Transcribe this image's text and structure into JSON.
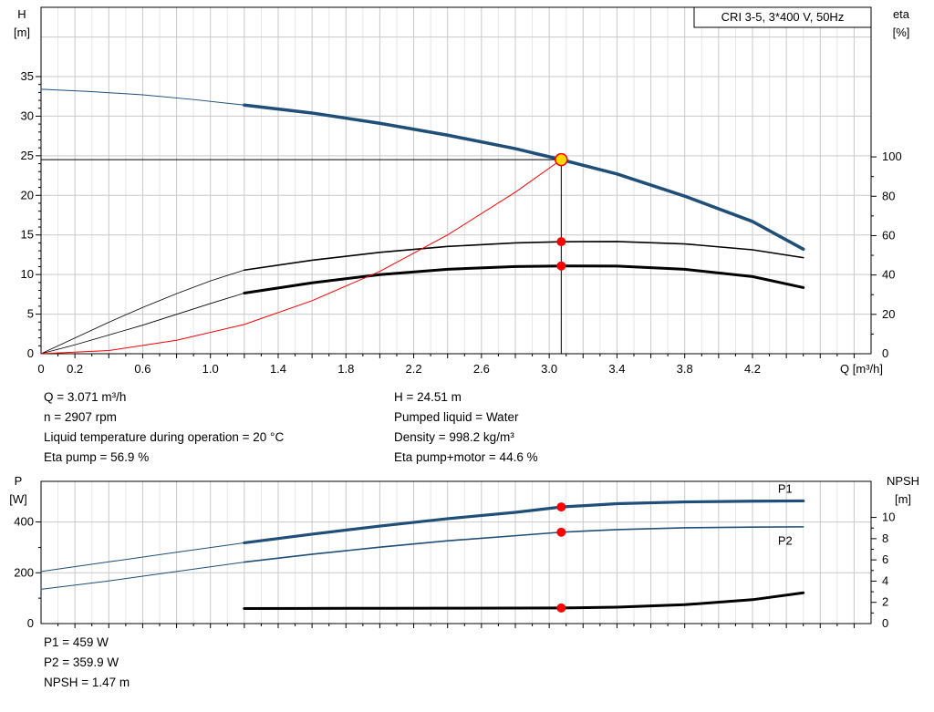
{
  "title_box": "CRI 3-5, 3*400 V, 50Hz",
  "info": {
    "left": [
      "Q = 3.071 m³/h",
      "n = 2907 rpm",
      "Liquid temperature during operation = 20 °C",
      "Eta pump = 56.9 %"
    ],
    "right": [
      "H = 24.51 m",
      "Pumped liquid = Water",
      "Density = 998.2 kg/m³",
      "Eta pump+motor = 44.6 %"
    ]
  },
  "bottom_info": [
    "P1 = 459 W",
    "P2 = 359.9 W",
    "NPSH = 1.47 m"
  ],
  "colors": {
    "curve_blue": "#1f4e79",
    "curve_black": "#000000",
    "marker_red": "#ff0000",
    "duty_yellow": "#ffd800",
    "grid_major": "#c9c9c9",
    "grid_minor": "#e6e6e6"
  },
  "chart_data": [
    {
      "type": "line",
      "title": "CRI 3-5, 3*400 V, 50Hz",
      "x_axis": {
        "label": "Q [m³/h]",
        "min": 0,
        "max": 4.9,
        "grid_step": 0.2,
        "minor_step": 0.1,
        "ticks": [
          [
            0,
            "0"
          ],
          [
            0.2,
            "0.2"
          ],
          [
            0.6,
            "0.6"
          ],
          [
            1,
            "1.0"
          ],
          [
            1.4,
            "1.4"
          ],
          [
            1.8,
            "1.8"
          ],
          [
            2.2,
            "2.2"
          ],
          [
            2.6,
            "2.6"
          ],
          [
            3,
            "3.0"
          ],
          [
            3.4,
            "3.4"
          ],
          [
            3.8,
            "3.8"
          ],
          [
            4.2,
            "4.2"
          ]
        ]
      },
      "y_left": {
        "label_lines": [
          "H",
          "[m]"
        ],
        "min": 0,
        "max": 43.75,
        "grid_step": 5,
        "minor_step": 1,
        "ticks": [
          [
            0,
            "0"
          ],
          [
            5,
            "5"
          ],
          [
            10,
            "10"
          ],
          [
            15,
            "15"
          ],
          [
            20,
            "20"
          ],
          [
            25,
            "25"
          ],
          [
            30,
            "30"
          ],
          [
            35,
            "35"
          ]
        ]
      },
      "y_right": {
        "label_lines": [
          "eta",
          "[%]"
        ],
        "min": 0,
        "max": 176,
        "minor_step": 10,
        "ticks": [
          [
            0,
            "0"
          ],
          [
            20,
            "20"
          ],
          [
            40,
            "40"
          ],
          [
            60,
            "60"
          ],
          [
            80,
            "80"
          ],
          [
            100,
            "100"
          ]
        ]
      },
      "series": [
        {
          "name": "hq-curve-thin",
          "axis": "left",
          "color": "#1f4e79",
          "width": 1,
          "points": [
            [
              0,
              33.4
            ],
            [
              0.3,
              33.1
            ],
            [
              0.6,
              32.7
            ],
            [
              0.9,
              32.1
            ],
            [
              1.2,
              31.4
            ]
          ]
        },
        {
          "name": "hq-curve",
          "axis": "left",
          "color": "#1f4e79",
          "width": 3.5,
          "points": [
            [
              1.2,
              31.4
            ],
            [
              1.6,
              30.4
            ],
            [
              2,
              29.1
            ],
            [
              2.4,
              27.6
            ],
            [
              2.8,
              25.9
            ],
            [
              3.071,
              24.51
            ],
            [
              3.4,
              22.7
            ],
            [
              3.8,
              19.9
            ],
            [
              4.2,
              16.7
            ],
            [
              4.5,
              13.2
            ]
          ]
        },
        {
          "name": "eta-pump-thin",
          "axis": "right",
          "color": "#000000",
          "width": 0.8,
          "points": [
            [
              0,
              0
            ],
            [
              0.2,
              8
            ],
            [
              0.4,
              16
            ],
            [
              0.6,
              23.5
            ],
            [
              0.8,
              30.5
            ],
            [
              1,
              37
            ],
            [
              1.2,
              42.5
            ]
          ]
        },
        {
          "name": "eta-pump-curve",
          "axis": "right",
          "color": "#000000",
          "width": 1.6,
          "points": [
            [
              1.2,
              42.5
            ],
            [
              1.6,
              47.5
            ],
            [
              2,
              51.5
            ],
            [
              2.4,
              54.5
            ],
            [
              2.8,
              56.3
            ],
            [
              3.071,
              56.9
            ],
            [
              3.4,
              57
            ],
            [
              3.8,
              55.8
            ],
            [
              4.2,
              52.8
            ],
            [
              4.5,
              48.8
            ]
          ]
        },
        {
          "name": "eta-pump-motor-thin",
          "axis": "right",
          "color": "#000000",
          "width": 0.8,
          "points": [
            [
              0,
              0
            ],
            [
              0.2,
              4.5
            ],
            [
              0.4,
              9.5
            ],
            [
              0.6,
              14.5
            ],
            [
              0.8,
              20
            ],
            [
              1,
              25.5
            ],
            [
              1.2,
              30.8
            ]
          ]
        },
        {
          "name": "eta-pump-motor-curve",
          "axis": "right",
          "color": "#000000",
          "width": 3,
          "points": [
            [
              1.2,
              30.8
            ],
            [
              1.6,
              36
            ],
            [
              2,
              40.2
            ],
            [
              2.4,
              42.9
            ],
            [
              2.8,
              44.3
            ],
            [
              3.071,
              44.6
            ],
            [
              3.4,
              44.5
            ],
            [
              3.8,
              42.9
            ],
            [
              4.2,
              39.2
            ],
            [
              4.5,
              33.6
            ]
          ]
        },
        {
          "name": "system-curve",
          "axis": "left",
          "color": "#ff0000",
          "width": 1,
          "points": [
            [
              0,
              0
            ],
            [
              0.4,
              0.4
            ],
            [
              0.8,
              1.7
            ],
            [
              1.2,
              3.7
            ],
            [
              1.6,
              6.7
            ],
            [
              2,
              10.4
            ],
            [
              2.4,
              15
            ],
            [
              2.8,
              20.4
            ],
            [
              3.071,
              24.51
            ]
          ]
        }
      ],
      "guides": [
        {
          "type": "vline",
          "axis": "left",
          "q": 3.071,
          "v_from": 0,
          "v_to": 24.51
        },
        {
          "type": "hline",
          "axis": "left",
          "v": 24.51,
          "q_from": 0,
          "q_to": 3.071
        }
      ],
      "markers": [
        {
          "name": "duty-point-marker",
          "q": 3.071,
          "v": 24.51,
          "axis": "left",
          "r": 6.5,
          "fill": "#ffd800",
          "stroke": "#ff0000",
          "stroke_width": 1.6
        },
        {
          "name": "eta-pump-marker",
          "q": 3.071,
          "v": 56.9,
          "axis": "right",
          "r": 5,
          "fill": "#ff0000"
        },
        {
          "name": "eta-pump-motor-marker",
          "q": 3.071,
          "v": 44.6,
          "axis": "right",
          "r": 5,
          "fill": "#ff0000"
        }
      ],
      "annotations": []
    },
    {
      "type": "line",
      "x_axis": {
        "min": 0,
        "max": 4.9,
        "grid_step": 0.2,
        "minor_step": 0.1,
        "ticks": []
      },
      "y_left": {
        "label_lines": [
          "P",
          "[W]"
        ],
        "min": 0,
        "max": 560,
        "grid_step": 200,
        "minor_step": 100,
        "ticks": [
          [
            0,
            "0"
          ],
          [
            200,
            "200"
          ],
          [
            400,
            "400"
          ]
        ]
      },
      "y_right": {
        "label_lines": [
          "NPSH",
          "[m]"
        ],
        "min": 0,
        "max": 13.4,
        "minor_step": 1,
        "ticks": [
          [
            0,
            "0"
          ],
          [
            2,
            "2"
          ],
          [
            4,
            "4"
          ],
          [
            6,
            "6"
          ],
          [
            8,
            "8"
          ],
          [
            10,
            "10"
          ]
        ]
      },
      "series": [
        {
          "name": "p1-curve-thin",
          "axis": "left",
          "color": "#1f4e79",
          "width": 1,
          "points": [
            [
              0,
              205
            ],
            [
              0.4,
              243
            ],
            [
              0.8,
              281
            ],
            [
              1.2,
              318
            ]
          ]
        },
        {
          "name": "p1-curve",
          "axis": "left",
          "color": "#1f4e79",
          "width": 3.2,
          "points": [
            [
              1.2,
              318
            ],
            [
              1.6,
              352
            ],
            [
              2,
              384
            ],
            [
              2.4,
              413
            ],
            [
              2.8,
              438
            ],
            [
              3.071,
              459
            ],
            [
              3.4,
              472
            ],
            [
              3.8,
              479
            ],
            [
              4.2,
              482
            ],
            [
              4.5,
              483
            ]
          ]
        },
        {
          "name": "p2-curve-thin",
          "axis": "left",
          "color": "#1f4e79",
          "width": 1,
          "points": [
            [
              0,
              135
            ],
            [
              0.4,
              168
            ],
            [
              0.8,
              205
            ],
            [
              1.2,
              242
            ]
          ]
        },
        {
          "name": "p2-curve",
          "axis": "left",
          "color": "#1f4e79",
          "width": 1.6,
          "points": [
            [
              1.2,
              242
            ],
            [
              1.6,
              273
            ],
            [
              2,
              301
            ],
            [
              2.4,
              326
            ],
            [
              2.8,
              346
            ],
            [
              3.071,
              359.9
            ],
            [
              3.4,
              370
            ],
            [
              3.8,
              377
            ],
            [
              4.2,
              380
            ],
            [
              4.5,
              381
            ]
          ]
        },
        {
          "name": "npsh-curve",
          "axis": "right",
          "color": "#000000",
          "width": 3,
          "points": [
            [
              1.2,
              1.42
            ],
            [
              1.6,
              1.43
            ],
            [
              2,
              1.44
            ],
            [
              2.4,
              1.45
            ],
            [
              2.8,
              1.46
            ],
            [
              3.071,
              1.47
            ],
            [
              3.4,
              1.55
            ],
            [
              3.8,
              1.78
            ],
            [
              4.2,
              2.25
            ],
            [
              4.5,
              2.9
            ]
          ]
        }
      ],
      "guides": [],
      "markers": [
        {
          "name": "p1-marker",
          "q": 3.071,
          "v": 459,
          "axis": "left",
          "r": 5,
          "fill": "#ff0000"
        },
        {
          "name": "p2-marker",
          "q": 3.071,
          "v": 359.9,
          "axis": "left",
          "r": 5,
          "fill": "#ff0000"
        },
        {
          "name": "npsh-marker",
          "q": 3.071,
          "v": 1.47,
          "axis": "right",
          "r": 5,
          "fill": "#ff0000"
        }
      ],
      "annotations": [
        {
          "text": "P1",
          "q": 4.35,
          "v": 515,
          "axis": "left",
          "color": "#1f4e79"
        },
        {
          "text": "P2",
          "q": 4.35,
          "v": 310,
          "axis": "left",
          "color": "#1f4e79"
        }
      ]
    }
  ]
}
